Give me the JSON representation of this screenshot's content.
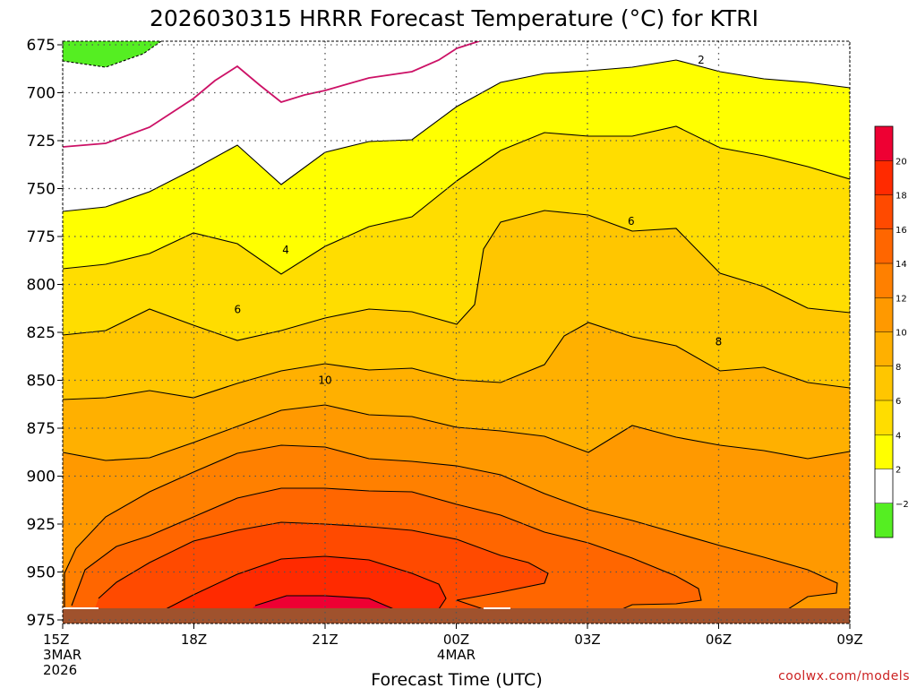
{
  "chart_data": {
    "type": "heatmap",
    "title": "2026030315 HRRR Forecast Temperature (°C) for KTRI",
    "xlabel": "Forecast Time (UTC)",
    "ylabel": "",
    "x_ticks": [
      {
        "label": "15Z",
        "sub": [
          "3MAR",
          "2026"
        ],
        "hour": 0
      },
      {
        "label": "18Z",
        "sub": [],
        "hour": 3
      },
      {
        "label": "21Z",
        "sub": [],
        "hour": 6
      },
      {
        "label": "00Z",
        "sub": [
          "4MAR"
        ],
        "hour": 9
      },
      {
        "label": "03Z",
        "sub": [],
        "hour": 12
      },
      {
        "label": "06Z",
        "sub": [],
        "hour": 15
      },
      {
        "label": "09Z",
        "sub": [],
        "hour": 18
      }
    ],
    "xlim": [
      0,
      18
    ],
    "y_ticks": [
      "675",
      "700",
      "725",
      "750",
      "775",
      "800",
      "825",
      "850",
      "875",
      "900",
      "925",
      "950",
      "975"
    ],
    "ylim": [
      975,
      675
    ],
    "colorbar": {
      "ticks": [
        "−2",
        "2",
        "4",
        "6",
        "8",
        "10",
        "12",
        "14",
        "16",
        "18",
        "20"
      ],
      "colors": [
        "#55ee22",
        "#ffffff",
        "#ffff00",
        "#ffdd00",
        "#ffc600",
        "#ffb000",
        "#ff9900",
        "#ff8000",
        "#ff6600",
        "#ff4a00",
        "#ff2a00",
        "#ee0033"
      ]
    },
    "contour_labels": [
      {
        "label": "2",
        "hour": 14.6,
        "pressure": 683
      },
      {
        "label": "4",
        "hour": 5.1,
        "pressure": 782
      },
      {
        "label": "6",
        "hour": 4.0,
        "pressure": 813
      },
      {
        "label": "6",
        "hour": 13.0,
        "pressure": 767
      },
      {
        "label": "8",
        "hour": 15.0,
        "pressure": 830
      },
      {
        "label": "10",
        "hour": 6.0,
        "pressure": 850
      }
    ],
    "ground_color": "#a0522d",
    "credit": "coolwx.com/models"
  }
}
